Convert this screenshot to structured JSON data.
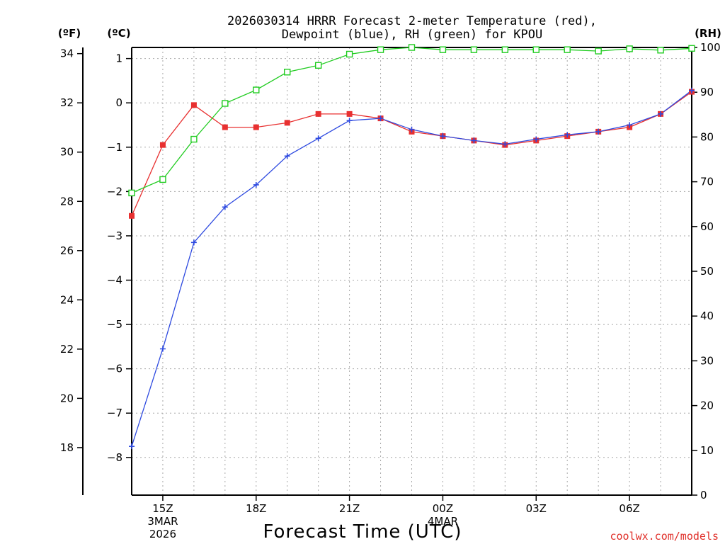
{
  "chart_data": {
    "type": "line",
    "title_line1": "2026030314 HRRR Forecast 2-meter Temperature (red),",
    "title_line2": "Dewpoint (blue), RH (green) for KPOU",
    "xlabel": "Forecast Time (UTC)",
    "credit": "coolwx.com/models",
    "units": {
      "f": "(ºF)",
      "c": "(ºC)",
      "rh": "(RH)"
    },
    "x_range": [
      14,
      32
    ],
    "x_ticks": [
      {
        "x": 15,
        "label": "15Z",
        "sub": [
          "3MAR",
          "2026"
        ]
      },
      {
        "x": 18,
        "label": "18Z",
        "sub": []
      },
      {
        "x": 21,
        "label": "21Z",
        "sub": []
      },
      {
        "x": 24,
        "label": "00Z",
        "sub": [
          "4MAR"
        ]
      },
      {
        "x": 27,
        "label": "03Z",
        "sub": []
      },
      {
        "x": 30,
        "label": "06Z",
        "sub": []
      }
    ],
    "c_range": [
      -8.85,
      1.25
    ],
    "c_ticks": [
      "1",
      "0",
      "−1",
      "−2",
      "−3",
      "−4",
      "−5",
      "−6",
      "−7",
      "−8"
    ],
    "f_ticks": [
      "34",
      "32",
      "30",
      "28",
      "26",
      "24",
      "22",
      "20",
      "18"
    ],
    "rh_range": [
      0,
      100
    ],
    "rh_ticks": [
      "100",
      "90",
      "80",
      "70",
      "60",
      "50",
      "40",
      "30",
      "20",
      "10",
      "0"
    ],
    "series": [
      {
        "name": "Temperature",
        "unit": "C",
        "color": "#e83030",
        "marker": "filled-square",
        "x": [
          14,
          15,
          16,
          17,
          18,
          19,
          20,
          21,
          22,
          23,
          24,
          25,
          26,
          27,
          28,
          29,
          30,
          31,
          32
        ],
        "values": [
          -2.55,
          -0.95,
          -0.05,
          -0.55,
          -0.55,
          -0.45,
          -0.25,
          -0.25,
          -0.35,
          -0.65,
          -0.75,
          -0.85,
          -0.95,
          -0.85,
          -0.75,
          -0.65,
          -0.55,
          -0.25,
          0.25
        ]
      },
      {
        "name": "Dewpoint",
        "unit": "C",
        "color": "#2e4ae0",
        "marker": "plus",
        "x": [
          14,
          15,
          16,
          17,
          18,
          19,
          20,
          21,
          22,
          23,
          24,
          25,
          26,
          27,
          28,
          29,
          30,
          31,
          32
        ],
        "values": [
          -7.75,
          -5.55,
          -3.15,
          -2.35,
          -1.85,
          -1.2,
          -0.8,
          -0.4,
          -0.35,
          -0.6,
          -0.75,
          -0.85,
          -0.93,
          -0.82,
          -0.72,
          -0.65,
          -0.5,
          -0.25,
          0.28
        ]
      },
      {
        "name": "RH",
        "unit": "%",
        "color": "#20cc20",
        "marker": "open-square",
        "x": [
          14,
          15,
          16,
          17,
          18,
          19,
          20,
          21,
          22,
          23,
          24,
          25,
          26,
          27,
          28,
          29,
          30,
          31,
          32
        ],
        "values": [
          67.5,
          70.5,
          79.5,
          87.5,
          90.5,
          94.5,
          96,
          98.5,
          99.5,
          100,
          99.5,
          99.5,
          99.5,
          99.5,
          99.5,
          99.2,
          99.7,
          99.4,
          99.8
        ]
      }
    ]
  }
}
